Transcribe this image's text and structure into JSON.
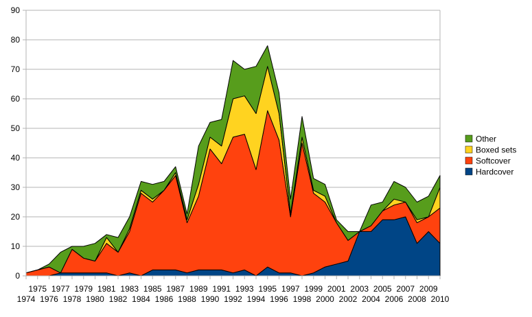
{
  "chart_data": {
    "type": "area",
    "stacked": true,
    "title": "",
    "xlabel": "",
    "ylabel": "",
    "ylim": [
      0,
      90
    ],
    "y_ticks": [
      0,
      10,
      20,
      30,
      40,
      50,
      60,
      70,
      80,
      90
    ],
    "grid": true,
    "legend_position": "right",
    "categories": [
      "1974",
      "1975",
      "1976",
      "1977",
      "1978",
      "1979",
      "1980",
      "1981",
      "1982",
      "1983",
      "1984",
      "1985",
      "1986",
      "1987",
      "1988",
      "1989",
      "1990",
      "1991",
      "1992",
      "1993",
      "1994",
      "1995",
      "1996",
      "1997",
      "1998",
      "1999",
      "2000",
      "2001",
      "2002",
      "2003",
      "2004",
      "2005",
      "2006",
      "2007",
      "2008",
      "2009",
      "2010"
    ],
    "series": [
      {
        "name": "Hardcover",
        "color": "#004586",
        "values": [
          0,
          0,
          0,
          1,
          1,
          1,
          1,
          1,
          0,
          1,
          0,
          2,
          2,
          2,
          1,
          2,
          2,
          2,
          1,
          2,
          0,
          3,
          1,
          1,
          0,
          1,
          3,
          4,
          5,
          15,
          15,
          19,
          19,
          20,
          11,
          15,
          11
        ]
      },
      {
        "name": "Softcover",
        "color": "#ff420e",
        "values": [
          1,
          2,
          3,
          0,
          8,
          5,
          4,
          10,
          8,
          14,
          28,
          23,
          27,
          32,
          17,
          25,
          41,
          36,
          46,
          46,
          36,
          53,
          45,
          19,
          45,
          27,
          22,
          14,
          7,
          0,
          2,
          3,
          5,
          5,
          7,
          5,
          12
        ]
      },
      {
        "name": "Boxed sets",
        "color": "#ffd320",
        "values": [
          0,
          0,
          0,
          0,
          0,
          0,
          0,
          2,
          0,
          1,
          1,
          1,
          0,
          1,
          1,
          4,
          4,
          6,
          13,
          13,
          19,
          15,
          9,
          1,
          2,
          1,
          2,
          0,
          0,
          0,
          0,
          0,
          2,
          0,
          1,
          0,
          7
        ]
      },
      {
        "name": "Other",
        "color": "#579d1c",
        "values": [
          0,
          0,
          1,
          7,
          1,
          4,
          6,
          1,
          5,
          4,
          3,
          5,
          3,
          2,
          2,
          13,
          5,
          9,
          13,
          9,
          16,
          7,
          7,
          5,
          7,
          4,
          4,
          1,
          3,
          0,
          7,
          3,
          6,
          5,
          6,
          7,
          4
        ]
      }
    ],
    "legend_order": [
      "Other",
      "Boxed sets",
      "Softcover",
      "Hardcover"
    ]
  }
}
